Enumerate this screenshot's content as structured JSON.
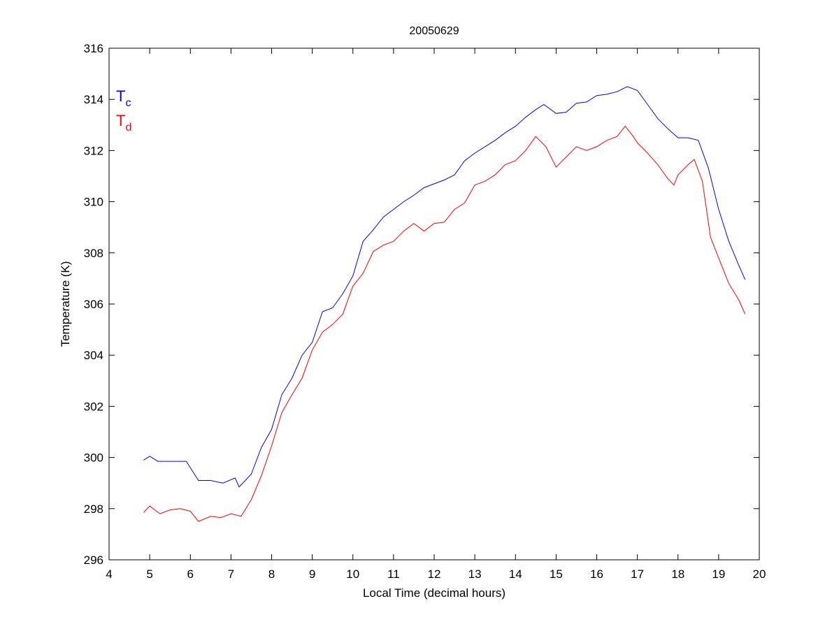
{
  "chart_data": {
    "type": "line",
    "title": "20050629",
    "xlabel": "Local Time (decimal hours)",
    "ylabel": "Temperature (K)",
    "xlim": [
      4,
      20
    ],
    "ylim": [
      296,
      316
    ],
    "xticks": [
      4,
      5,
      6,
      7,
      8,
      9,
      10,
      11,
      12,
      13,
      14,
      15,
      16,
      17,
      18,
      19,
      20
    ],
    "yticks": [
      296,
      298,
      300,
      302,
      304,
      306,
      308,
      310,
      312,
      314,
      316
    ],
    "grid": false,
    "legend_placement": "top-left",
    "series": [
      {
        "name": "Tc",
        "label_main": "T",
        "label_sub": "c",
        "color": "#0000ff",
        "x": [
          4.85,
          5.0,
          5.2,
          5.9,
          6.2,
          6.5,
          6.8,
          7.1,
          7.2,
          7.5,
          7.75,
          8.0,
          8.25,
          8.5,
          8.75,
          9.0,
          9.25,
          9.5,
          9.75,
          10.0,
          10.25,
          10.5,
          10.75,
          11.0,
          11.25,
          11.5,
          11.75,
          12.0,
          12.25,
          12.5,
          12.75,
          13.0,
          13.25,
          13.5,
          13.75,
          14.0,
          14.25,
          14.5,
          14.7,
          15.0,
          15.25,
          15.5,
          15.75,
          16.0,
          16.25,
          16.5,
          16.75,
          17.0,
          17.25,
          17.5,
          17.75,
          18.0,
          18.25,
          18.5,
          18.75,
          19.0,
          19.25,
          19.5,
          19.65
        ],
        "y": [
          299.9,
          300.05,
          299.85,
          299.85,
          299.1,
          299.1,
          299.0,
          299.2,
          298.85,
          299.35,
          300.4,
          301.1,
          302.45,
          303.1,
          304.0,
          304.5,
          305.7,
          305.85,
          306.4,
          307.1,
          308.45,
          308.9,
          309.4,
          309.7,
          310.0,
          310.25,
          310.55,
          310.7,
          310.85,
          311.05,
          311.6,
          311.9,
          312.15,
          312.4,
          312.7,
          312.95,
          313.3,
          313.6,
          313.8,
          313.45,
          313.5,
          313.85,
          313.9,
          314.15,
          314.2,
          314.3,
          314.5,
          314.35,
          313.8,
          313.25,
          312.85,
          312.5,
          312.5,
          312.4,
          311.3,
          309.7,
          308.45,
          307.5,
          306.95
        ]
      },
      {
        "name": "Td",
        "label_main": "T",
        "label_sub": "d",
        "color": "#ff0000",
        "x": [
          4.85,
          5.0,
          5.25,
          5.5,
          5.75,
          6.0,
          6.2,
          6.5,
          6.75,
          7.0,
          7.25,
          7.5,
          7.75,
          8.0,
          8.25,
          8.5,
          8.75,
          9.0,
          9.25,
          9.5,
          9.75,
          10.0,
          10.25,
          10.5,
          10.75,
          11.0,
          11.25,
          11.5,
          11.75,
          12.0,
          12.25,
          12.5,
          12.75,
          13.0,
          13.25,
          13.5,
          13.75,
          14.0,
          14.25,
          14.5,
          14.75,
          15.0,
          15.25,
          15.5,
          15.75,
          16.0,
          16.25,
          16.5,
          16.7,
          16.9,
          17.0,
          17.25,
          17.5,
          17.75,
          17.9,
          18.0,
          18.25,
          18.4,
          18.6,
          18.8,
          19.0,
          19.25,
          19.5,
          19.65
        ],
        "y": [
          297.85,
          298.1,
          297.8,
          297.95,
          298.0,
          297.9,
          297.5,
          297.7,
          297.65,
          297.8,
          297.7,
          298.35,
          299.3,
          300.45,
          301.75,
          302.45,
          303.1,
          304.2,
          304.9,
          305.2,
          305.6,
          306.7,
          307.2,
          308.05,
          308.3,
          308.45,
          308.85,
          309.15,
          308.85,
          309.15,
          309.2,
          309.7,
          309.95,
          310.65,
          310.8,
          311.05,
          311.45,
          311.6,
          312.0,
          312.55,
          312.15,
          311.35,
          311.75,
          312.15,
          312.0,
          312.15,
          312.4,
          312.55,
          312.95,
          312.55,
          312.3,
          311.9,
          311.45,
          310.9,
          310.65,
          311.05,
          311.45,
          311.65,
          310.8,
          308.6,
          307.8,
          306.8,
          306.15,
          305.6
        ]
      }
    ]
  }
}
